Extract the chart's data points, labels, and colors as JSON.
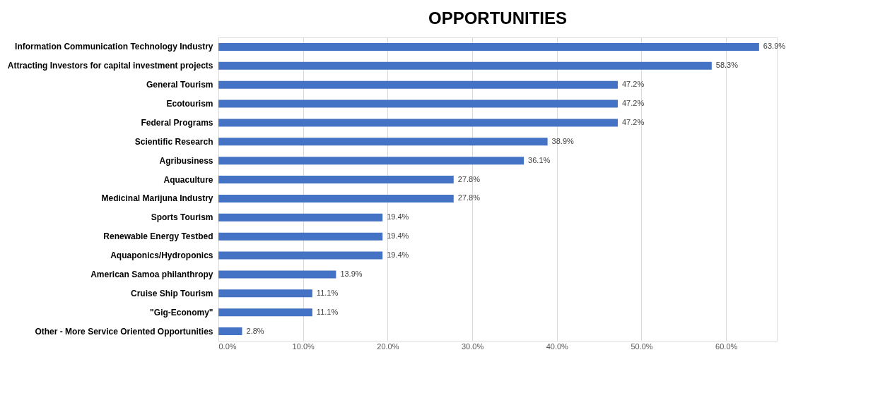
{
  "chart_data": {
    "type": "bar",
    "orientation": "horizontal",
    "title": "OPPORTUNITIES",
    "categories": [
      "Information Communication Technology Industry",
      "Attracting Investors for capital investment projects",
      "General Tourism",
      "Ecotourism",
      "Federal Programs",
      "Scientific Research",
      "Agribusiness",
      "Aquaculture",
      "Medicinal Marijuna Industry",
      "Sports Tourism",
      "Renewable Energy Testbed",
      "Aquaponics/Hydroponics",
      "American Samoa philanthropy",
      "Cruise Ship Tourism",
      "\"Gig-Economy\"",
      "Other - More Service Oriented Opportunities"
    ],
    "values": [
      63.9,
      58.3,
      47.2,
      47.2,
      47.2,
      38.9,
      36.1,
      27.8,
      27.8,
      19.4,
      19.4,
      19.4,
      13.9,
      11.1,
      11.1,
      2.8
    ],
    "value_labels": [
      "63.9%",
      "58.3%",
      "47.2%",
      "47.2%",
      "47.2%",
      "38.9%",
      "36.1%",
      "27.8%",
      "27.8%",
      "19.4%",
      "19.4%",
      "19.4%",
      "13.9%",
      "11.1%",
      "11.1%",
      "2.8%"
    ],
    "color": "#4472c4",
    "xlim": [
      0,
      66
    ],
    "xticks": [
      {
        "value": 0,
        "label": "0.0%"
      },
      {
        "value": 10,
        "label": "10.0%"
      },
      {
        "value": 20,
        "label": "20.0%"
      },
      {
        "value": 30,
        "label": "30.0%"
      },
      {
        "value": 40,
        "label": "40.0%"
      },
      {
        "value": 50,
        "label": "50.0%"
      },
      {
        "value": 60,
        "label": "60.0%"
      }
    ],
    "grid": "x"
  }
}
